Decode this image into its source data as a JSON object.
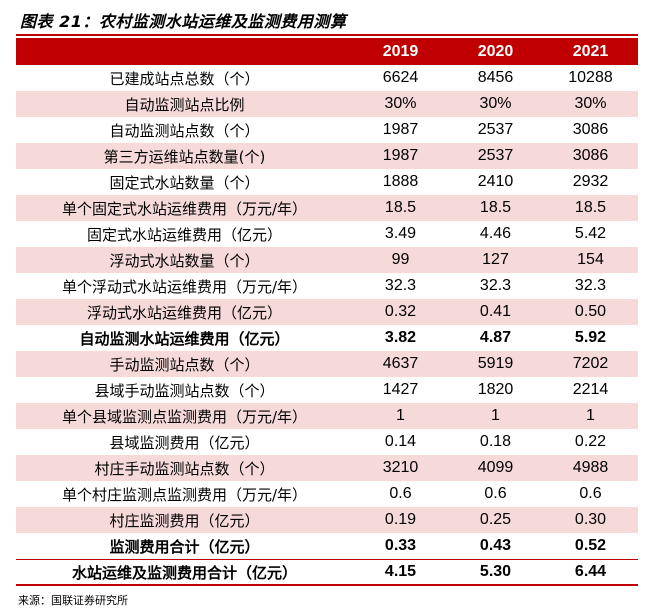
{
  "title": "图表 21：农村监测水站运维及监测费用测算",
  "years": [
    "2019",
    "2020",
    "2021"
  ],
  "rows": [
    {
      "label": "已建成站点总数（个）",
      "v": [
        "6624",
        "8456",
        "10288"
      ]
    },
    {
      "label": "自动监测站点比例",
      "v": [
        "30%",
        "30%",
        "30%"
      ]
    },
    {
      "label": "自动监测站点数（个）",
      "v": [
        "1987",
        "2537",
        "3086"
      ]
    },
    {
      "label": "第三方运维站点数量(个)",
      "v": [
        "1987",
        "2537",
        "3086"
      ]
    },
    {
      "label": "固定式水站数量（个）",
      "v": [
        "1888",
        "2410",
        "2932"
      ]
    },
    {
      "label": "单个固定式水站运维费用（万元/年）",
      "v": [
        "18.5",
        "18.5",
        "18.5"
      ]
    },
    {
      "label": "固定式水站运维费用（亿元）",
      "v": [
        "3.49",
        "4.46",
        "5.42"
      ]
    },
    {
      "label": "浮动式水站数量（个）",
      "v": [
        "99",
        "127",
        "154"
      ]
    },
    {
      "label": "单个浮动式水站运维费用（万元/年）",
      "v": [
        "32.3",
        "32.3",
        "32.3"
      ]
    },
    {
      "label": "浮动式水站运维费用（亿元）",
      "v": [
        "0.32",
        "0.41",
        "0.50"
      ]
    },
    {
      "label": "自动监测水站运维费用（亿元）",
      "v": [
        "3.82",
        "4.87",
        "5.92"
      ]
    },
    {
      "label": "手动监测站点数（个）",
      "v": [
        "4637",
        "5919",
        "7202"
      ]
    },
    {
      "label": "县域手动监测站点数（个）",
      "v": [
        "1427",
        "1820",
        "2214"
      ]
    },
    {
      "label": "单个县域监测点监测费用（万元/年）",
      "v": [
        "1",
        "1",
        "1"
      ]
    },
    {
      "label": "县域监测费用（亿元）",
      "v": [
        "0.14",
        "0.18",
        "0.22"
      ]
    },
    {
      "label": "村庄手动监测站点数（个）",
      "v": [
        "3210",
        "4099",
        "4988"
      ]
    },
    {
      "label": "单个村庄监测点监测费用（万元/年）",
      "v": [
        "0.6",
        "0.6",
        "0.6"
      ]
    },
    {
      "label": "村庄监测费用（亿元）",
      "v": [
        "0.19",
        "0.25",
        "0.30"
      ]
    },
    {
      "label": "监测费用合计（亿元）",
      "v": [
        "0.33",
        "0.43",
        "0.52"
      ]
    },
    {
      "label": "水站运维及监测费用合计（亿元）",
      "v": [
        "4.15",
        "5.30",
        "6.44"
      ]
    }
  ],
  "source": "来源：国联证券研究所"
}
